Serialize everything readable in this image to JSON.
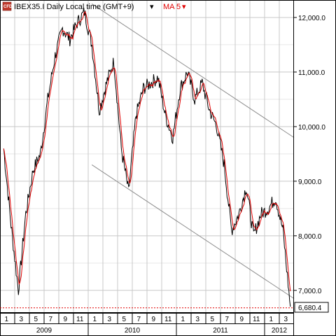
{
  "header": {
    "logo_text": "CFD",
    "instrument_label": "IBEX35.I Daily Local time (GMT+9)",
    "indicator_label": "MA 5",
    "dropdown_arrow": "▾"
  },
  "colors": {
    "price_line": "#000000",
    "ma_line": "#e00000",
    "grid": "#c8c8c8",
    "trend_line": "#8c8c8c",
    "last_price_line": "#e00000",
    "indicator_text": "#e00000",
    "logo_fill": "#c0392b"
  },
  "icons": {
    "logo": "cfd-logo-icon",
    "dropdown": "dropdown-arrow-icon"
  },
  "last_price_label": "6,680.4",
  "chart_data": {
    "type": "line",
    "title": "IBEX35.I Daily Local time (GMT+9)",
    "xlabel": "",
    "ylabel": "",
    "ylim": [
      6600,
      12320
    ],
    "grid": true,
    "y_axis_position": "right",
    "y_ticks": [
      "12,000.0",
      "11,000.0",
      "10,000.0",
      "9,000.0",
      "8,000.0",
      "7,000.0"
    ],
    "y_tick_values": [
      12000,
      11000,
      10000,
      9000,
      8000,
      7000
    ],
    "x_month_labels": [
      "1",
      "3",
      "5",
      "7",
      "9",
      "11",
      "1",
      "3",
      "5",
      "7",
      "9",
      "11",
      "1",
      "3",
      "5",
      "7",
      "9",
      "11",
      "1",
      "3"
    ],
    "x_year_labels": [
      "2009",
      "2010",
      "2011",
      "2012"
    ],
    "last_price": 6680.4,
    "series": [
      {
        "name": "IBEX35.I",
        "x": [
          "2009-01",
          "2009-02",
          "2009-03",
          "2009-04",
          "2009-05",
          "2009-06",
          "2009-07",
          "2009-08",
          "2009-09",
          "2009-10",
          "2009-11",
          "2009-12",
          "2010-01",
          "2010-02",
          "2010-03",
          "2010-04",
          "2010-05",
          "2010-06",
          "2010-07",
          "2010-08",
          "2010-09",
          "2010-10",
          "2010-11",
          "2010-12",
          "2011-01",
          "2011-02",
          "2011-03",
          "2011-04",
          "2011-05",
          "2011-06",
          "2011-07",
          "2011-08",
          "2011-09",
          "2011-10",
          "2011-11",
          "2011-12",
          "2012-01",
          "2012-02",
          "2012-03",
          "2012-04"
        ],
        "values": [
          9600,
          8200,
          7000,
          8400,
          9200,
          9500,
          10500,
          11300,
          11800,
          11600,
          11900,
          12100,
          11500,
          10300,
          10800,
          11200,
          9600,
          8800,
          10200,
          10700,
          10800,
          10900,
          10200,
          9800,
          10700,
          11000,
          10500,
          10800,
          10300,
          10000,
          9300,
          8100,
          8400,
          8900,
          8000,
          8400,
          8500,
          8700,
          8100,
          6700
        ]
      }
    ],
    "trend_channel": {
      "upper": {
        "from": [
          "2010-01",
          12250
        ],
        "to": [
          "2012-04",
          9800
        ]
      },
      "lower": {
        "from": [
          "2010-01",
          9300
        ],
        "to": [
          "2012-04",
          6850
        ]
      }
    }
  }
}
